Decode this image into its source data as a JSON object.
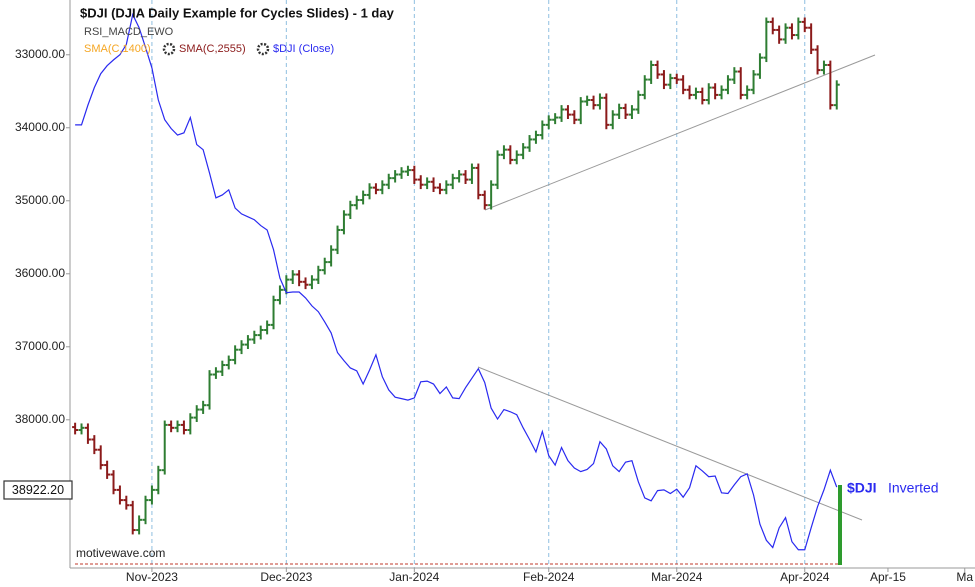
{
  "chart_data": {
    "type": "ohlc",
    "title": "$DJI (DJIA Daily Example for Cycles Slides) - 1 day",
    "study": "RSI_MACD_EWO",
    "indicators": [
      {
        "name": "SMA(C,1400)",
        "color": "#f5a623"
      },
      {
        "name": "SMA(C,2555)",
        "color": "#8b1a1a"
      }
    ],
    "watermark": "motivewave.com",
    "annotations": [
      "$DJI",
      "Inverted"
    ],
    "x": [
      0,
      1,
      2,
      3,
      4,
      5,
      6,
      7,
      8,
      9,
      10,
      11,
      12,
      13,
      14,
      15,
      16,
      17,
      18,
      19,
      20,
      21,
      22,
      23,
      24,
      25,
      26,
      27,
      28,
      29,
      30,
      31,
      32,
      33,
      34,
      35,
      36,
      37,
      38,
      39,
      40,
      41,
      42,
      43,
      44,
      45,
      46,
      47,
      48,
      49,
      50,
      51,
      52,
      53,
      54,
      55,
      56,
      57,
      58,
      59,
      60,
      61,
      62,
      63,
      64,
      65,
      66,
      67,
      68,
      69,
      70,
      71,
      72,
      73,
      74,
      75,
      76,
      77,
      78,
      79,
      80,
      81,
      82,
      83,
      84,
      85,
      86,
      87,
      88,
      89,
      90,
      91,
      92,
      93,
      94,
      95,
      96,
      97,
      98,
      99,
      100,
      101,
      102,
      103,
      104,
      105,
      106,
      107,
      108,
      109,
      110,
      111,
      112,
      113,
      114,
      115,
      116,
      117,
      118,
      119
    ],
    "xlim": [
      -0.8,
      140.6
    ],
    "xticks": [
      {
        "value": 12,
        "label": "Nov-2023"
      },
      {
        "value": 33,
        "label": "Dec-2023"
      },
      {
        "value": 53,
        "label": "Jan-2024"
      },
      {
        "value": 74,
        "label": "Feb-2024"
      },
      {
        "value": 94,
        "label": "Mar-2024"
      },
      {
        "value": 114,
        "label": "Apr-2024"
      },
      {
        "value": 127,
        "label": "Apr-15"
      },
      {
        "value": 139,
        "label": "Ma"
      }
    ],
    "ylim": [
      40030,
      32250
    ],
    "yticks": [
      {
        "value": 33000,
        "label": "33000.00"
      },
      {
        "value": 34000,
        "label": "34000.00"
      },
      {
        "value": 35000,
        "label": "35000.00"
      },
      {
        "value": 36000,
        "label": "36000.00"
      },
      {
        "value": 37000,
        "label": "37000.00"
      },
      {
        "value": 38000,
        "label": "38000.00"
      }
    ],
    "cycle_lines": true,
    "series": [
      {
        "type": "ohlc",
        "up_color": "#2e7d32",
        "down_color": "#8b1a1a",
        "values": [
          [
            38100,
            38200,
            38040,
            38140
          ],
          [
            38140,
            38200,
            38050,
            38110
          ],
          [
            38110,
            38330,
            38050,
            38270
          ],
          [
            38270,
            38470,
            38210,
            38410
          ],
          [
            38410,
            38680,
            38350,
            38620
          ],
          [
            38620,
            38810,
            38560,
            38750
          ],
          [
            38750,
            39020,
            38690,
            38960
          ],
          [
            38960,
            39160,
            38900,
            39100
          ],
          [
            39100,
            39230,
            39040,
            39170
          ],
          [
            39170,
            39570,
            39110,
            39510
          ],
          [
            39510,
            39570,
            39310,
            39370
          ],
          [
            39370,
            39430,
            39040,
            39100
          ],
          [
            39100,
            39160,
            38900,
            38960
          ],
          [
            38960,
            39020,
            38630,
            38690
          ],
          [
            38690,
            38750,
            38010,
            38070
          ],
          [
            38070,
            38170,
            38010,
            38110
          ],
          [
            38110,
            38170,
            38010,
            38070
          ],
          [
            38070,
            38200,
            38010,
            38140
          ],
          [
            38140,
            38200,
            37910,
            37970
          ],
          [
            37970,
            38030,
            37800,
            37860
          ],
          [
            37860,
            37920,
            37740,
            37800
          ],
          [
            37800,
            37860,
            37320,
            37380
          ],
          [
            37380,
            37440,
            37280,
            37340
          ],
          [
            37340,
            37400,
            37190,
            37250
          ],
          [
            37250,
            37310,
            37120,
            37180
          ],
          [
            37180,
            37240,
            36980,
            37040
          ],
          [
            37040,
            37100,
            36910,
            36970
          ],
          [
            36970,
            37030,
            36840,
            36900
          ],
          [
            36900,
            36960,
            36780,
            36840
          ],
          [
            36840,
            36900,
            36710,
            36770
          ],
          [
            36770,
            36830,
            36640,
            36700
          ],
          [
            36700,
            36760,
            36300,
            36360
          ],
          [
            36360,
            36420,
            36160,
            36220
          ],
          [
            36220,
            36280,
            36020,
            36080
          ],
          [
            36080,
            36140,
            35950,
            36010
          ],
          [
            36010,
            36170,
            35950,
            36110
          ],
          [
            36110,
            36210,
            36050,
            36150
          ],
          [
            36150,
            36210,
            36020,
            36080
          ],
          [
            36080,
            36140,
            35890,
            35950
          ],
          [
            35950,
            36010,
            35780,
            35840
          ],
          [
            35840,
            35900,
            35610,
            35670
          ],
          [
            35670,
            35730,
            35340,
            35400
          ],
          [
            35400,
            35460,
            35130,
            35190
          ],
          [
            35190,
            35250,
            35000,
            35060
          ],
          [
            35060,
            35120,
            34930,
            34990
          ],
          [
            34990,
            35050,
            34860,
            34920
          ],
          [
            34920,
            34980,
            34760,
            34820
          ],
          [
            34820,
            34910,
            34760,
            34850
          ],
          [
            34850,
            34910,
            34720,
            34780
          ],
          [
            34780,
            34840,
            34630,
            34690
          ],
          [
            34690,
            34750,
            34580,
            34640
          ],
          [
            34640,
            34700,
            34540,
            34600
          ],
          [
            34600,
            34660,
            34520,
            34580
          ],
          [
            34580,
            34770,
            34520,
            34710
          ],
          [
            34710,
            34840,
            34650,
            34780
          ],
          [
            34780,
            34840,
            34680,
            34740
          ],
          [
            34740,
            34880,
            34680,
            34820
          ],
          [
            34820,
            34910,
            34760,
            34850
          ],
          [
            34850,
            34910,
            34720,
            34780
          ],
          [
            34780,
            34840,
            34630,
            34690
          ],
          [
            34690,
            34750,
            34580,
            34640
          ],
          [
            34640,
            34770,
            34580,
            34710
          ],
          [
            34710,
            34770,
            34490,
            34550
          ],
          [
            34550,
            34980,
            34490,
            34920
          ],
          [
            34920,
            35120,
            34860,
            35060
          ],
          [
            35060,
            35120,
            34720,
            34780
          ],
          [
            34780,
            34840,
            34310,
            34370
          ],
          [
            34370,
            34430,
            34240,
            34300
          ],
          [
            34300,
            34500,
            34240,
            34440
          ],
          [
            34440,
            34500,
            34310,
            34370
          ],
          [
            34370,
            34430,
            34210,
            34270
          ],
          [
            34270,
            34330,
            34100,
            34160
          ],
          [
            34160,
            34220,
            34040,
            34100
          ],
          [
            34100,
            34160,
            33900,
            33960
          ],
          [
            33960,
            34020,
            33830,
            33890
          ],
          [
            33890,
            33950,
            33800,
            33860
          ],
          [
            33860,
            33920,
            33690,
            33750
          ],
          [
            33750,
            33880,
            33690,
            33820
          ],
          [
            33820,
            33950,
            33760,
            33890
          ],
          [
            33890,
            33950,
            33580,
            33640
          ],
          [
            33640,
            33700,
            33560,
            33620
          ],
          [
            33620,
            33750,
            33560,
            33690
          ],
          [
            33690,
            33750,
            33530,
            33590
          ],
          [
            33590,
            34020,
            33530,
            33960
          ],
          [
            33960,
            34020,
            33760,
            33820
          ],
          [
            33820,
            33880,
            33670,
            33730
          ],
          [
            33730,
            33880,
            33670,
            33820
          ],
          [
            33820,
            33880,
            33690,
            33750
          ],
          [
            33750,
            33810,
            33490,
            33550
          ],
          [
            33550,
            33610,
            33280,
            33340
          ],
          [
            33340,
            33400,
            33080,
            33140
          ],
          [
            33140,
            33330,
            33080,
            33270
          ],
          [
            33270,
            33470,
            33210,
            33410
          ],
          [
            33410,
            33470,
            33260,
            33320
          ],
          [
            33320,
            33400,
            33260,
            33340
          ],
          [
            33340,
            33540,
            33280,
            33480
          ],
          [
            33480,
            33610,
            33420,
            33550
          ],
          [
            33550,
            33610,
            33450,
            33510
          ],
          [
            33510,
            33680,
            33450,
            33620
          ],
          [
            33620,
            33680,
            33390,
            33450
          ],
          [
            33450,
            33610,
            33390,
            33550
          ],
          [
            33550,
            33610,
            33420,
            33480
          ],
          [
            33480,
            33540,
            33280,
            33340
          ],
          [
            33340,
            33400,
            33170,
            33230
          ],
          [
            33230,
            33610,
            33170,
            33550
          ],
          [
            33550,
            33610,
            33420,
            33480
          ],
          [
            33480,
            33540,
            33210,
            33270
          ],
          [
            33270,
            33330,
            32980,
            33040
          ],
          [
            33040,
            33100,
            32490,
            32550
          ],
          [
            32550,
            32720,
            32490,
            32660
          ],
          [
            32660,
            32850,
            32600,
            32790
          ],
          [
            32790,
            32850,
            32570,
            32630
          ],
          [
            32630,
            32790,
            32570,
            32730
          ],
          [
            32730,
            32790,
            32490,
            32550
          ],
          [
            32550,
            32690,
            32490,
            32630
          ],
          [
            32630,
            32990,
            32570,
            32930
          ],
          [
            32930,
            33270,
            32870,
            33210
          ],
          [
            33210,
            33270,
            33080,
            33140
          ],
          [
            33140,
            33750,
            33080,
            33690
          ],
          [
            33690,
            33750,
            33350,
            33410
          ]
        ]
      },
      {
        "type": "line",
        "name": "$DJI (Close)",
        "color": "#2a2af0",
        "values": [
          33960,
          33960,
          33690,
          33450,
          33260,
          33150,
          33070,
          33000,
          32860,
          32450,
          32630,
          32900,
          33180,
          33620,
          33890,
          34010,
          34100,
          34070,
          33860,
          34230,
          34300,
          34620,
          34960,
          34920,
          34850,
          35100,
          35180,
          35220,
          35260,
          35340,
          35400,
          35670,
          36060,
          36260,
          36250,
          36250,
          36330,
          36440,
          36520,
          36660,
          36810,
          37080,
          37190,
          37290,
          37330,
          37510,
          37320,
          37110,
          37410,
          37590,
          37690,
          37710,
          37730,
          37700,
          37480,
          37470,
          37510,
          37640,
          37550,
          37700,
          37710,
          37560,
          37430,
          37300,
          37490,
          37840,
          37990,
          37860,
          37890,
          37930,
          38110,
          38270,
          38440,
          38160,
          38490,
          38620,
          38380,
          38560,
          38660,
          38710,
          38680,
          38600,
          38300,
          38400,
          38630,
          38710,
          38580,
          38560,
          38850,
          39070,
          39110,
          38970,
          38960,
          39010,
          38950,
          39060,
          38930,
          38630,
          38700,
          38780,
          38770,
          39000,
          39010,
          38890,
          38780,
          38740,
          39030,
          39430,
          39650,
          39750,
          39480,
          39340,
          39670,
          39780,
          39780,
          39480,
          39190,
          38960,
          38690,
          38922.2
        ],
        "value_labels": [
          null,
          null,
          null,
          null,
          null,
          null,
          null,
          null,
          null,
          null,
          null,
          null,
          null,
          null,
          null,
          null,
          null,
          null,
          null,
          null,
          null,
          null,
          null,
          null,
          null,
          null,
          null,
          null,
          null,
          null,
          null,
          null,
          null,
          null,
          null,
          null,
          null,
          null,
          null,
          null,
          null,
          null,
          null,
          null,
          null,
          null,
          null,
          null,
          null,
          null,
          null,
          null,
          null,
          null,
          null,
          null,
          null,
          null,
          null,
          null,
          null,
          null,
          null,
          null,
          null,
          null,
          null,
          null,
          null,
          null,
          null,
          null,
          null,
          null,
          null,
          null,
          null,
          null,
          null,
          null,
          null,
          null,
          null,
          null,
          null,
          null,
          null,
          null,
          null,
          null,
          null,
          null,
          null,
          null,
          null,
          null,
          null,
          null,
          null,
          null,
          null,
          null,
          null,
          null,
          null,
          null,
          null,
          null,
          null,
          null,
          null,
          null,
          null,
          null,
          null,
          null,
          null,
          null,
          null,
          "38922.20"
        ]
      }
    ]
  }
}
